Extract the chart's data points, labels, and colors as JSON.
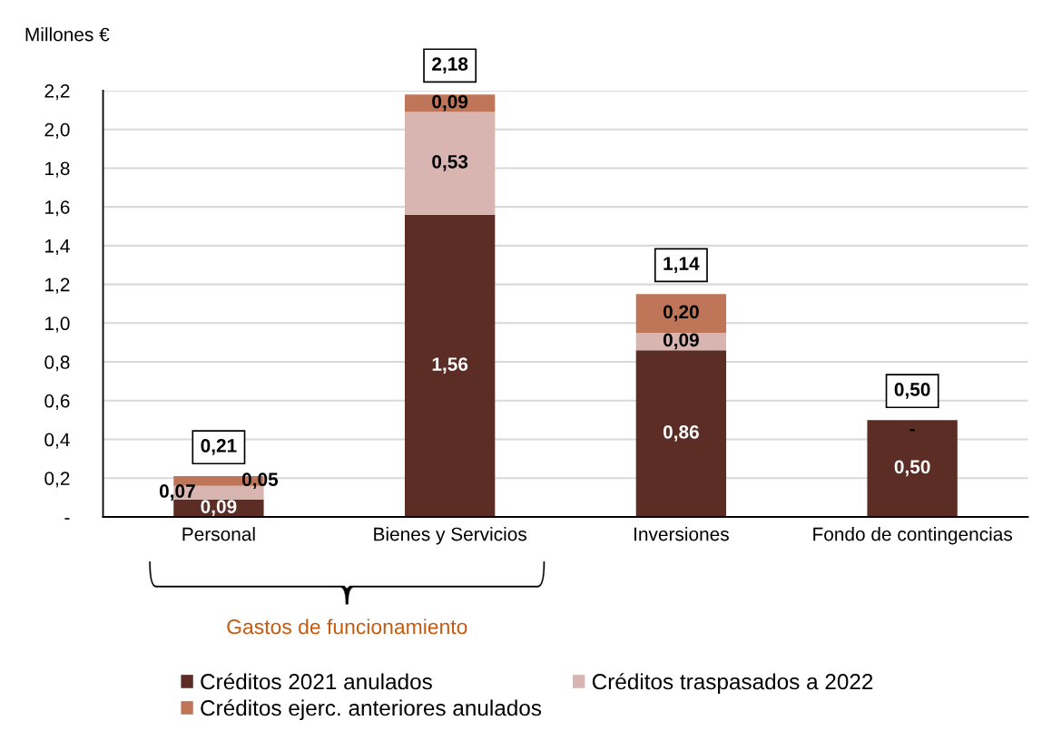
{
  "chart_data": {
    "type": "bar",
    "stacked": true,
    "ylabel": "Millones €",
    "categories": [
      "Personal",
      "Bienes y Servicios",
      "Inversiones",
      "Fondo de contingencias"
    ],
    "series": [
      {
        "name": "Créditos 2021 anulados",
        "color": "#5b2d25",
        "values": [
          0.09,
          1.56,
          0.86,
          0.5
        ],
        "value_labels": [
          "0,09",
          "1,56",
          "0,86",
          "0,50"
        ]
      },
      {
        "name": "Créditos traspasados a 2022",
        "color": "#d8b5b0",
        "values": [
          0.07,
          0.53,
          0.09,
          0
        ],
        "value_labels": [
          "0,07",
          "0,53",
          "0,09",
          "-"
        ]
      },
      {
        "name": "Créditos ejerc. anteriores anulados",
        "color": "#bf7658",
        "values": [
          0.05,
          0.09,
          0.2,
          0
        ],
        "value_labels": [
          "0,05",
          "0,09",
          "0,20",
          null
        ]
      }
    ],
    "totals": [
      "0,21",
      "2,18",
      "1,14",
      "0,50"
    ],
    "ylim": [
      0,
      2.2
    ],
    "yticks": [
      {
        "value": 0,
        "label": "-"
      },
      {
        "value": 0.2,
        "label": "0,2"
      },
      {
        "value": 0.4,
        "label": "0,4"
      },
      {
        "value": 0.6,
        "label": "0,6"
      },
      {
        "value": 0.8,
        "label": "0,8"
      },
      {
        "value": 1.0,
        "label": "1,0"
      },
      {
        "value": 1.2,
        "label": "1,2"
      },
      {
        "value": 1.4,
        "label": "1,4"
      },
      {
        "value": 1.6,
        "label": "1,6"
      },
      {
        "value": 1.8,
        "label": "1,8"
      },
      {
        "value": 2.0,
        "label": "2,0"
      },
      {
        "value": 2.2,
        "label": "2,2"
      }
    ],
    "grid": "y",
    "legend": "bottom",
    "annotations": [
      "Gastos de funcionamiento"
    ]
  }
}
